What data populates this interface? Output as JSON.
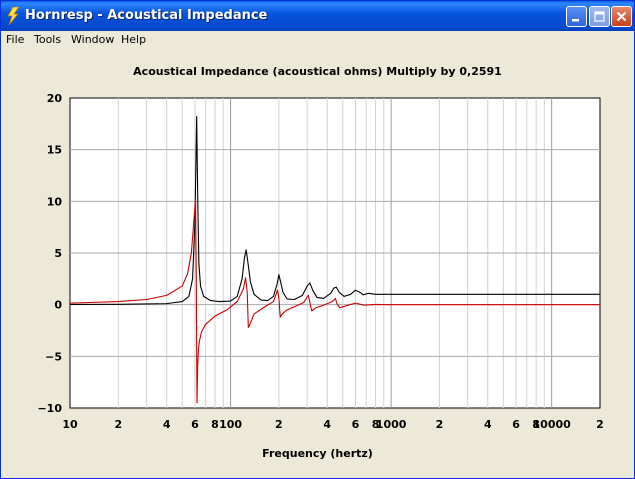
{
  "window": {
    "title": "Hornresp - Acoustical Impedance",
    "icon": "lightning-bolt-icon",
    "accent": "#0855DD"
  },
  "menu": {
    "items": [
      {
        "label": "File"
      },
      {
        "label": "Tools"
      },
      {
        "label": "Window"
      },
      {
        "label": "Help"
      }
    ]
  },
  "chart_data": {
    "type": "line",
    "title": "Acoustical Impedance (acoustical ohms)   Multiply by 0,2591",
    "xlabel": "Frequency (hertz)",
    "ylabel": "",
    "xscale": "log",
    "xlim": [
      10,
      20000
    ],
    "ylim": [
      -10,
      20
    ],
    "grid": true,
    "yticks": [
      {
        "value": 20,
        "label": "20"
      },
      {
        "value": 15,
        "label": "15"
      },
      {
        "value": 10,
        "label": "10"
      },
      {
        "value": 5,
        "label": "5"
      },
      {
        "value": 0,
        "label": "0"
      },
      {
        "value": -5,
        "label": "−5"
      },
      {
        "value": -10,
        "label": "−10"
      }
    ],
    "xticks": [
      {
        "value": 10,
        "label": "10"
      },
      {
        "value": 20,
        "label": "2"
      },
      {
        "value": 40,
        "label": "4"
      },
      {
        "value": 60,
        "label": "6"
      },
      {
        "value": 80,
        "label": "8"
      },
      {
        "value": 100,
        "label": "100"
      },
      {
        "value": 200,
        "label": "2"
      },
      {
        "value": 400,
        "label": "4"
      },
      {
        "value": 600,
        "label": "6"
      },
      {
        "value": 800,
        "label": "8"
      },
      {
        "value": 1000,
        "label": "1000"
      },
      {
        "value": 2000,
        "label": "2"
      },
      {
        "value": 4000,
        "label": "4"
      },
      {
        "value": 6000,
        "label": "6"
      },
      {
        "value": 8000,
        "label": "8"
      },
      {
        "value": 10000,
        "label": "10000"
      },
      {
        "value": 20000,
        "label": "2"
      }
    ],
    "series": [
      {
        "color": "#000000",
        "x": [
          10,
          20,
          40,
          50,
          55,
          58,
          60,
          61.5,
          62.5,
          63.5,
          65,
          68,
          75,
          85,
          100,
          110,
          118,
          122,
          125,
          128,
          133,
          140,
          155,
          170,
          185,
          195,
          200,
          205,
          212,
          225,
          250,
          280,
          300,
          312,
          325,
          345,
          380,
          420,
          440,
          455,
          475,
          510,
          560,
          600,
          640,
          670,
          720,
          800,
          1000,
          2000,
          6000,
          20000
        ],
        "y": [
          0.02,
          0.03,
          0.1,
          0.3,
          0.8,
          2.5,
          8,
          18.2,
          10,
          4,
          1.8,
          0.8,
          0.4,
          0.3,
          0.35,
          0.8,
          2.5,
          4.5,
          5.3,
          4.2,
          2.2,
          1.0,
          0.45,
          0.4,
          0.8,
          2.0,
          2.9,
          2.2,
          1.2,
          0.55,
          0.5,
          0.9,
          1.8,
          2.1,
          1.4,
          0.7,
          0.6,
          1.1,
          1.6,
          1.7,
          1.2,
          0.8,
          1.0,
          1.4,
          1.2,
          0.95,
          1.1,
          1.0,
          1.0,
          1.0,
          1.0,
          1.0
        ]
      },
      {
        "color": "#CC0000",
        "x": [
          10,
          20,
          30,
          40,
          50,
          54,
          57,
          59,
          60.5,
          61.2,
          61.8,
          62.4,
          63,
          64,
          66,
          70,
          80,
          95,
          110,
          120,
          124,
          127,
          129,
          133,
          140,
          160,
          185,
          196,
          200,
          204,
          210,
          225,
          250,
          285,
          305,
          312,
          320,
          340,
          380,
          430,
          450,
          460,
          480,
          540,
          600,
          680,
          800,
          1000,
          2000,
          6000,
          20000
        ],
        "y": [
          0.15,
          0.3,
          0.5,
          0.9,
          1.8,
          3,
          5,
          8,
          10.2,
          2,
          -9.5,
          -6,
          -4.5,
          -3.5,
          -2.6,
          -1.9,
          -1.1,
          -0.5,
          0.3,
          1.5,
          2.6,
          1.2,
          -2.2,
          -1.8,
          -0.9,
          -0.3,
          0.3,
          1.4,
          0.6,
          -1.2,
          -0.9,
          -0.5,
          -0.2,
          0.2,
          0.9,
          0.2,
          -0.6,
          -0.3,
          -0.05,
          0.3,
          0.6,
          0.1,
          -0.3,
          -0.05,
          0.15,
          -0.05,
          0.02,
          0.0,
          0.0,
          0.0,
          0.0
        ]
      }
    ]
  }
}
